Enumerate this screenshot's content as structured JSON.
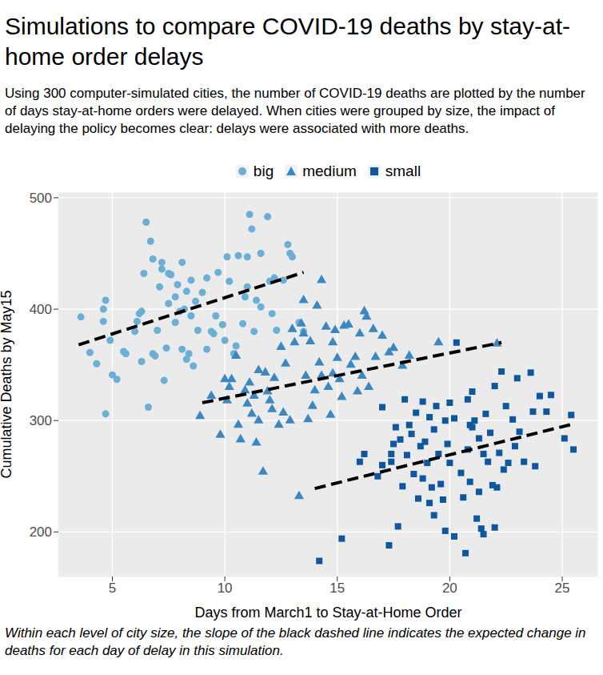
{
  "chart_data": {
    "type": "scatter",
    "title": "Simulations to compare COVID-19 deaths by stay-at-home order delays",
    "subtitle": "Using 300 computer-simulated cities, the number of COVID-19 deaths are plotted by the number of days stay-at-home orders were delayed. When cities were grouped by size, the impact of delaying the policy becomes clear: delays were associated with more deaths.",
    "caption": "Within each level of city size, the slope of the black dashed line indicates the expected change in deaths for each day of delay in this simulation.",
    "x_label": "Days from March1 to Stay-at-Home Order",
    "y_label": "Cumulative Deaths by May15",
    "xlim": [
      2.6,
      26.6
    ],
    "xticks": [
      5,
      10,
      15,
      20,
      25
    ],
    "ylim": [
      160,
      505
    ],
    "yticks": [
      200,
      300,
      400,
      500
    ],
    "grid": true,
    "legend": "top",
    "series": [
      {
        "name": "big",
        "color": "#6baed6",
        "marker": "circle",
        "x": [
          3.6,
          4.0,
          4.3,
          4.6,
          4.6,
          4.7,
          4.7,
          4.9,
          5.0,
          5.2,
          5.5,
          5.6,
          6.0,
          6.1,
          6.2,
          6.3,
          6.3,
          6.4,
          6.5,
          6.6,
          6.7,
          6.8,
          6.8,
          6.9,
          7.0,
          7.1,
          7.2,
          7.2,
          7.3,
          7.4,
          7.5,
          7.5,
          7.6,
          7.8,
          7.8,
          7.9,
          8.0,
          8.1,
          8.1,
          8.2,
          8.3,
          8.3,
          8.4,
          8.5,
          8.5,
          8.6,
          8.7,
          8.8,
          9.0,
          9.2,
          9.2,
          9.4,
          9.5,
          9.6,
          9.7,
          9.9,
          10.0,
          10.1,
          10.2,
          10.4,
          10.5,
          10.6,
          10.8,
          10.9,
          11.0,
          11.0,
          11.1,
          11.2,
          11.3,
          11.4,
          11.6,
          11.6,
          11.9,
          12.0,
          12.1,
          12.2,
          12.3,
          12.6,
          12.8,
          12.9,
          13.0,
          13.3,
          13.5
        ],
        "values": [
          393,
          361,
          351,
          389,
          400,
          408,
          306,
          372,
          341,
          337,
          362,
          360,
          380,
          389,
          396,
          398,
          353,
          432,
          478,
          312,
          461,
          445,
          360,
          358,
          381,
          420,
          436,
          442,
          336,
          365,
          432,
          405,
          431,
          411,
          388,
          422,
          398,
          442,
          364,
          400,
          416,
          355,
          360,
          426,
          394,
          349,
          407,
          381,
          415,
          428,
          364,
          380,
          378,
          394,
          433,
          386,
          372,
          447,
          425,
          360,
          367,
          448,
          387,
          411,
          447,
          420,
          485,
          472,
          380,
          408,
          450,
          402,
          483,
          425,
          396,
          428,
          381,
          426,
          458,
          450,
          447,
          388,
          380
        ]
      },
      {
        "name": "medium",
        "color": "#3a87c2",
        "marker": "triangle",
        "x": [
          8.9,
          9.4,
          9.8,
          10.0,
          10.1,
          10.2,
          10.3,
          10.5,
          10.6,
          10.7,
          10.9,
          11.0,
          11.1,
          11.2,
          11.3,
          11.4,
          11.5,
          11.5,
          11.7,
          11.8,
          11.9,
          12.0,
          12.1,
          12.2,
          12.4,
          12.5,
          12.6,
          12.7,
          12.9,
          13.0,
          13.1,
          13.3,
          13.4,
          13.5,
          13.5,
          13.6,
          13.7,
          13.8,
          13.9,
          14.0,
          14.1,
          14.2,
          14.3,
          14.3,
          14.5,
          14.6,
          14.7,
          14.8,
          14.8,
          14.9,
          15.0,
          15.1,
          15.2,
          15.3,
          15.5,
          15.6,
          15.8,
          15.9,
          16.0,
          16.1,
          16.2,
          16.3,
          16.4,
          16.6,
          16.7,
          17.0,
          17.3,
          17.5,
          17.9,
          18.2,
          19.5,
          22.1
        ],
        "values": [
          304,
          322,
          287,
          337,
          318,
          330,
          337,
          358,
          296,
          283,
          327,
          315,
          334,
          306,
          322,
          280,
          345,
          300,
          254,
          343,
          326,
          318,
          310,
          338,
          296,
          366,
          307,
          351,
          300,
          382,
          370,
          232,
          387,
          408,
          378,
          340,
          301,
          371,
          313,
          327,
          403,
          352,
          426,
          340,
          384,
          330,
          305,
          370,
          342,
          381,
          356,
          337,
          321,
          385,
          386,
          350,
          357,
          326,
          378,
          340,
          398,
          393,
          330,
          382,
          357,
          376,
          361,
          365,
          349,
          358,
          370,
          369
        ]
      },
      {
        "name": "small",
        "color": "#0d56a0",
        "marker": "square",
        "x": [
          14.2,
          15.2,
          16.0,
          16.2,
          16.8,
          17.0,
          17.0,
          17.3,
          17.4,
          17.5,
          17.6,
          17.7,
          17.8,
          17.9,
          18.0,
          18.1,
          18.2,
          18.3,
          18.4,
          18.5,
          18.6,
          18.7,
          18.8,
          18.8,
          18.9,
          19.0,
          19.1,
          19.1,
          19.2,
          19.3,
          19.3,
          19.4,
          19.5,
          19.6,
          19.7,
          19.8,
          19.8,
          19.9,
          20.0,
          20.0,
          20.2,
          20.2,
          20.3,
          20.5,
          20.6,
          20.7,
          20.8,
          20.8,
          20.9,
          21.0,
          21.0,
          21.1,
          21.2,
          21.3,
          21.3,
          21.4,
          21.5,
          21.5,
          21.6,
          21.7,
          21.8,
          21.9,
          22.0,
          22.0,
          22.1,
          22.2,
          22.3,
          22.4,
          22.5,
          22.6,
          22.8,
          22.9,
          23.0,
          23.1,
          23.3,
          23.6,
          23.7,
          23.8,
          24.0,
          24.3,
          24.5,
          25.1,
          25.4,
          25.5,
          20.9,
          17.4
        ],
        "values": [
          174,
          194,
          263,
          270,
          250,
          312,
          260,
          188,
          270,
          279,
          294,
          205,
          283,
          241,
          319,
          269,
          296,
          288,
          252,
          307,
          230,
          277,
          317,
          248,
          281,
          262,
          303,
          226,
          240,
          292,
          215,
          313,
          270,
          243,
          229,
          300,
          201,
          279,
          262,
          316,
          302,
          196,
          370,
          253,
          231,
          181,
          274,
          319,
          245,
          294,
          326,
          300,
          212,
          236,
          284,
          203,
          270,
          198,
          306,
          263,
          289,
          242,
          331,
          204,
          240,
          271,
          344,
          256,
          313,
          262,
          301,
          277,
          338,
          290,
          263,
          343,
          308,
          259,
          322,
          308,
          323,
          284,
          305,
          274,
          296,
          263
        ]
      }
    ],
    "fit_lines": [
      {
        "x": [
          3.5,
          13.5
        ],
        "values": [
          368,
          433
        ],
        "color": "#000000",
        "line_style": "dashed"
      },
      {
        "x": [
          9.0,
          22.3
        ],
        "values": [
          316,
          370
        ],
        "color": "#000000",
        "line_style": "dashed"
      },
      {
        "x": [
          14.0,
          25.5
        ],
        "values": [
          239,
          297
        ],
        "color": "#000000",
        "line_style": "dashed"
      }
    ]
  }
}
